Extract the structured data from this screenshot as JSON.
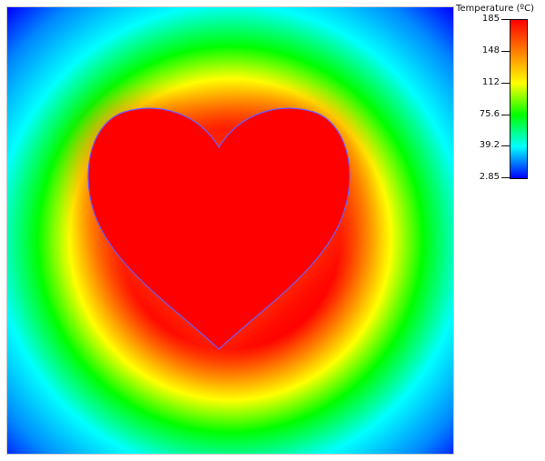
{
  "legend": {
    "title": "Temperature (ºC)",
    "ticks": [
      "185",
      "148",
      "112",
      "75.6",
      "39.2",
      "2.85"
    ],
    "colors": [
      "#ff0000",
      "#ff7f00",
      "#ffff00",
      "#00ff00",
      "#00ffff",
      "#0000ff"
    ]
  },
  "plot": {
    "shape": "heart",
    "hot_color": "#ff0000",
    "outline_color": "#6a5cff",
    "background_gradient": [
      "#0000ff",
      "#00ffff",
      "#00ff00",
      "#ffff00",
      "#ff7f00",
      "#ff0000"
    ]
  }
}
